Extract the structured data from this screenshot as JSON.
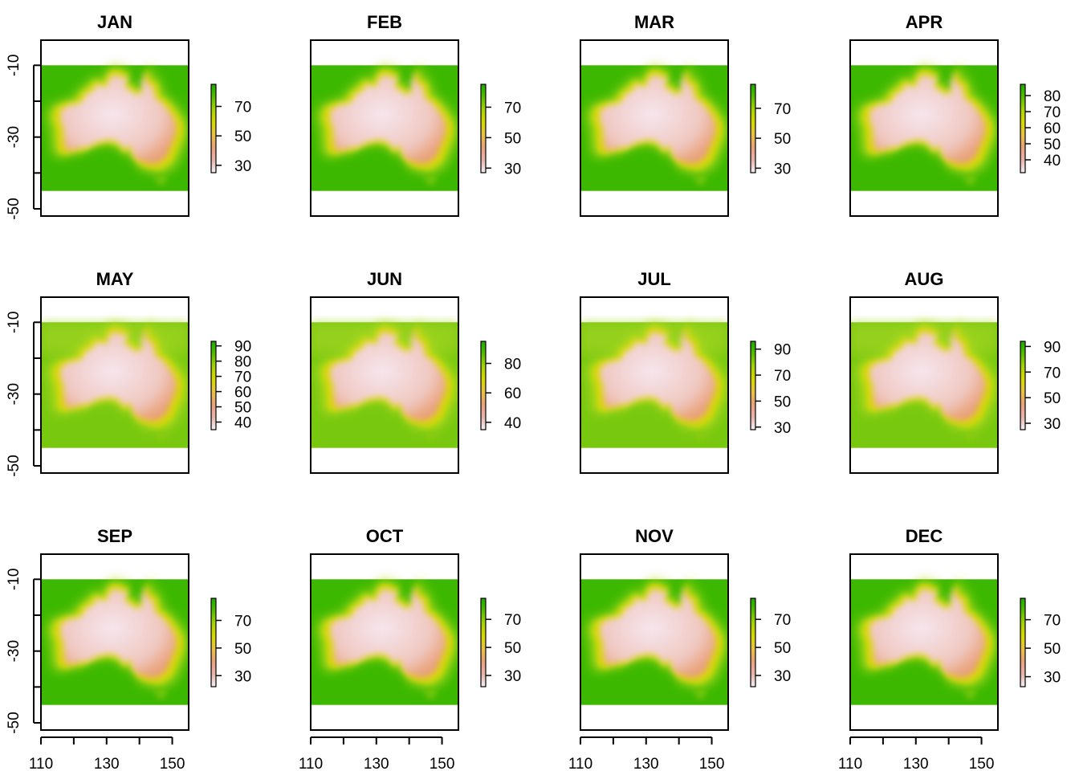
{
  "chart_data": {
    "type": "heatmap",
    "layout": "3 rows x 4 columns small multiples",
    "x_axis": {
      "ticks": [
        110,
        130,
        150
      ],
      "minor_ticks": [
        110,
        120,
        130,
        140,
        150
      ],
      "xlim": [
        110,
        155
      ]
    },
    "y_axis": {
      "ticks": [
        -10,
        -30,
        -50
      ],
      "minor_ticks": [
        -10,
        -20,
        -30,
        -40,
        -50
      ],
      "ylim": [
        -52,
        -3
      ]
    },
    "raster_extent": {
      "lon": [
        110,
        155
      ],
      "lat": [
        -45,
        -10
      ]
    },
    "colors": {
      "ocean": "#3cb800",
      "coast": "#d8d800",
      "land_low": "#e9a27a",
      "land_high": "#f6e6ef",
      "scale": [
        "#f2f2f2",
        "#eab2ae",
        "#e9a27a",
        "#e8c24a",
        "#d8d800",
        "#a8d20a",
        "#56bd00",
        "#1fa800"
      ]
    },
    "panels": [
      {
        "title": "JAN",
        "legend_ticks": [
          "70",
          "50",
          "30"
        ],
        "legend_range": [
          25,
          85
        ],
        "legend_tick_values": [
          70,
          50,
          30
        ]
      },
      {
        "title": "FEB",
        "legend_ticks": [
          "70",
          "50",
          "30"
        ],
        "legend_range": [
          27,
          85
        ],
        "legend_tick_values": [
          70,
          50,
          30
        ]
      },
      {
        "title": "MAR",
        "legend_ticks": [
          "70",
          "50",
          "30"
        ],
        "legend_range": [
          27,
          86
        ],
        "legend_tick_values": [
          70,
          50,
          30
        ]
      },
      {
        "title": "APR",
        "legend_ticks": [
          "80",
          "70",
          "60",
          "50",
          "40"
        ],
        "legend_range": [
          32,
          87
        ],
        "legend_tick_values": [
          80,
          70,
          60,
          50,
          40
        ]
      },
      {
        "title": "MAY",
        "legend_ticks": [
          "90",
          "80",
          "70",
          "60",
          "50",
          "40"
        ],
        "legend_range": [
          35,
          93
        ],
        "legend_tick_values": [
          90,
          80,
          70,
          60,
          50,
          40
        ]
      },
      {
        "title": "JUN",
        "legend_ticks": [
          "80",
          "60",
          "40"
        ],
        "legend_range": [
          35,
          95
        ],
        "legend_tick_values": [
          80,
          60,
          40
        ]
      },
      {
        "title": "JUL",
        "legend_ticks": [
          "90",
          "70",
          "50",
          "30"
        ],
        "legend_range": [
          28,
          96
        ],
        "legend_tick_values": [
          90,
          70,
          50,
          30
        ]
      },
      {
        "title": "AUG",
        "legend_ticks": [
          "90",
          "70",
          "50",
          "30"
        ],
        "legend_range": [
          25,
          94
        ],
        "legend_tick_values": [
          90,
          70,
          50,
          30
        ]
      },
      {
        "title": "SEP",
        "legend_ticks": [
          "70",
          "50",
          "30"
        ],
        "legend_range": [
          22,
          86
        ],
        "legend_tick_values": [
          70,
          50,
          30
        ]
      },
      {
        "title": "OCT",
        "legend_ticks": [
          "70",
          "50",
          "30"
        ],
        "legend_range": [
          22,
          85
        ],
        "legend_tick_values": [
          70,
          50,
          30
        ]
      },
      {
        "title": "NOV",
        "legend_ticks": [
          "70",
          "50",
          "30"
        ],
        "legend_range": [
          22,
          85
        ],
        "legend_tick_values": [
          70,
          50,
          30
        ]
      },
      {
        "title": "DEC",
        "legend_ticks": [
          "70",
          "50",
          "30"
        ],
        "legend_range": [
          23,
          85
        ],
        "legend_tick_values": [
          70,
          50,
          30
        ]
      }
    ]
  }
}
